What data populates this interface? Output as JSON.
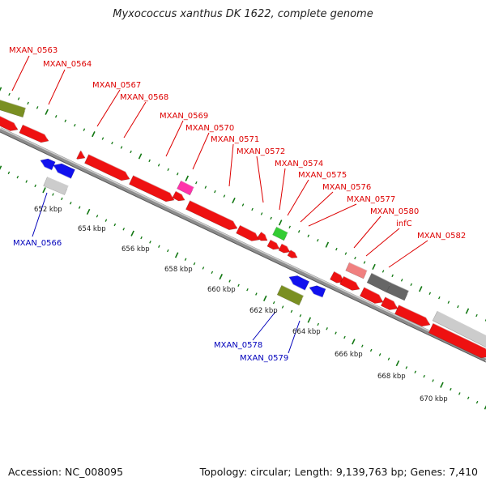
{
  "title": "Myxococcus xanthus DK 1622, complete genome",
  "footer": {
    "accession": "Accession: NC_008095",
    "topology": "Topology: circular; Length: 9,139,763 bp; Genes: 7,410"
  },
  "colors": {
    "forward_gene": "#ee1111",
    "reverse_gene": "#1111ee",
    "forward_label": "#dd0000",
    "reverse_label": "#0000bb",
    "tick": "#117711",
    "olive": "#7a8f22",
    "pink": "#ff33aa",
    "green": "#33cc33",
    "salmon": "#f08080",
    "dark_gray": "#666666",
    "light_gray": "#cccccc"
  },
  "kbp_labels": [
    "652 kbp",
    "654 kbp",
    "656 kbp",
    "658 kbp",
    "660 kbp",
    "662 kbp",
    "664 kbp",
    "666 kbp",
    "668 kbp",
    "670 kbp"
  ],
  "forward_labels": [
    "MXAN_0563",
    "MXAN_0564",
    "MXAN_0567",
    "MXAN_0568",
    "MXAN_0569",
    "MXAN_0570",
    "MXAN_0571",
    "MXAN_0572",
    "MXAN_0574",
    "MXAN_0575",
    "MXAN_0576",
    "MXAN_0577",
    "MXAN_0580",
    "infC",
    "MXAN_0582"
  ],
  "reverse_labels": [
    "MXAN_0566",
    "MXAN_0578",
    "MXAN_0579"
  ]
}
